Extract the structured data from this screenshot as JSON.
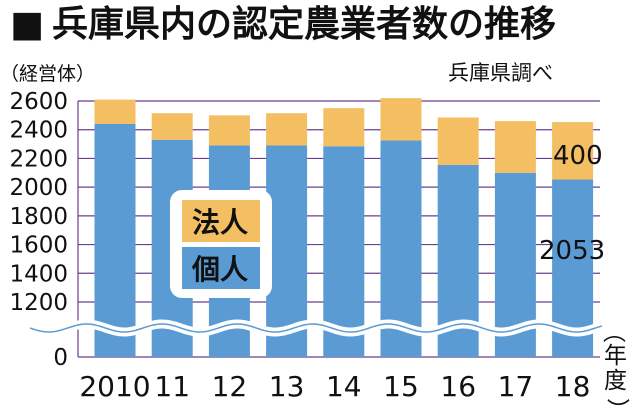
{
  "title": "兵庫県内の認定農業者数の推移",
  "title_marker": "■",
  "chart_data": {
    "type": "bar",
    "stacked": true,
    "categories": [
      "2010",
      "11",
      "12",
      "13",
      "14",
      "15",
      "16",
      "17",
      "18"
    ],
    "series": [
      {
        "name": "個人",
        "color": "#5a9bd4",
        "values": [
          2440,
          2330,
          2290,
          2290,
          2285,
          2325,
          2155,
          2100,
          2053
        ]
      },
      {
        "name": "法人",
        "color": "#f4be62",
        "values": [
          170,
          185,
          210,
          225,
          265,
          295,
          330,
          360,
          400
        ]
      }
    ],
    "y_ticks": [
      "2600",
      "2400",
      "2200",
      "2000",
      "1800",
      "1600",
      "1400",
      "1200",
      "0"
    ],
    "ylim": [
      1000,
      2600
    ],
    "y_axis_break": true,
    "ylabel": "（経営体）",
    "xlabel": "（年度）",
    "source": "兵庫県調べ",
    "legend_placement": "left",
    "data_labels": {
      "houjin_2018": "400",
      "kojin_2018": "2053"
    },
    "grid": true,
    "grid_color": "#6a3f8f"
  }
}
